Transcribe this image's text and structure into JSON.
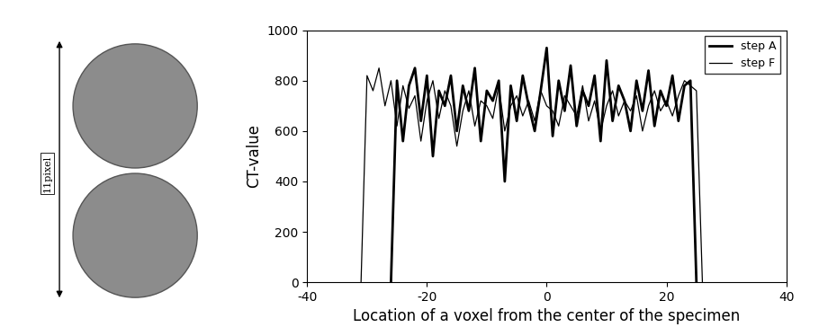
{
  "chart_data": {
    "type": "line",
    "x_label": "Location of a voxel from the center of the specimen",
    "y_label": "CT-value",
    "annotations": [
      "11pixel"
    ],
    "xlim": [
      -40,
      40
    ],
    "xticks": [
      -40,
      -20,
      0,
      20,
      40
    ],
    "ylim": [
      0,
      1000
    ],
    "yticks": [
      0,
      200,
      400,
      600,
      800,
      1000
    ],
    "legend": "upper right",
    "series": [
      {
        "name": "step A",
        "color": "#000000",
        "line_style": "thick",
        "x": [
          -26,
          -25,
          -24,
          -23,
          -22,
          -21,
          -20,
          -19,
          -18,
          -17,
          -16,
          -15,
          -14,
          -13,
          -12,
          -11,
          -10,
          -9,
          -8,
          -7,
          -6,
          -5,
          -4,
          -3,
          -2,
          -1,
          0,
          1,
          2,
          3,
          4,
          5,
          6,
          7,
          8,
          9,
          10,
          11,
          12,
          13,
          14,
          15,
          16,
          17,
          18,
          19,
          20,
          21,
          22,
          23,
          24,
          25
        ],
        "values": [
          0,
          800,
          560,
          780,
          850,
          640,
          820,
          500,
          760,
          700,
          820,
          600,
          780,
          680,
          850,
          560,
          760,
          720,
          800,
          400,
          780,
          640,
          820,
          700,
          600,
          760,
          930,
          580,
          800,
          680,
          860,
          620,
          760,
          700,
          820,
          560,
          880,
          640,
          780,
          720,
          600,
          800,
          680,
          840,
          620,
          760,
          700,
          820,
          640,
          780,
          800,
          0
        ]
      },
      {
        "name": "step F",
        "color": "#000000",
        "line_style": "thin",
        "x": [
          -31,
          -30,
          -29,
          -28,
          -27,
          -26,
          -25,
          -24,
          -23,
          -22,
          -21,
          -20,
          -19,
          -18,
          -17,
          -16,
          -15,
          -14,
          -13,
          -12,
          -11,
          -10,
          -9,
          -8,
          -7,
          -6,
          -5,
          -4,
          -3,
          -2,
          -1,
          0,
          1,
          2,
          3,
          4,
          5,
          6,
          7,
          8,
          9,
          10,
          11,
          12,
          13,
          14,
          15,
          16,
          17,
          18,
          19,
          20,
          21,
          22,
          23,
          24,
          25,
          26
        ],
        "values": [
          0,
          820,
          760,
          850,
          700,
          800,
          620,
          780,
          690,
          740,
          560,
          720,
          800,
          650,
          760,
          700,
          540,
          680,
          760,
          620,
          720,
          700,
          650,
          780,
          600,
          700,
          740,
          660,
          720,
          640,
          760,
          700,
          680,
          620,
          740,
          700,
          660,
          780,
          640,
          720,
          600,
          700,
          760,
          660,
          720,
          680,
          740,
          600,
          700,
          760,
          680,
          720,
          660,
          740,
          800,
          780,
          760,
          0
        ]
      }
    ]
  }
}
